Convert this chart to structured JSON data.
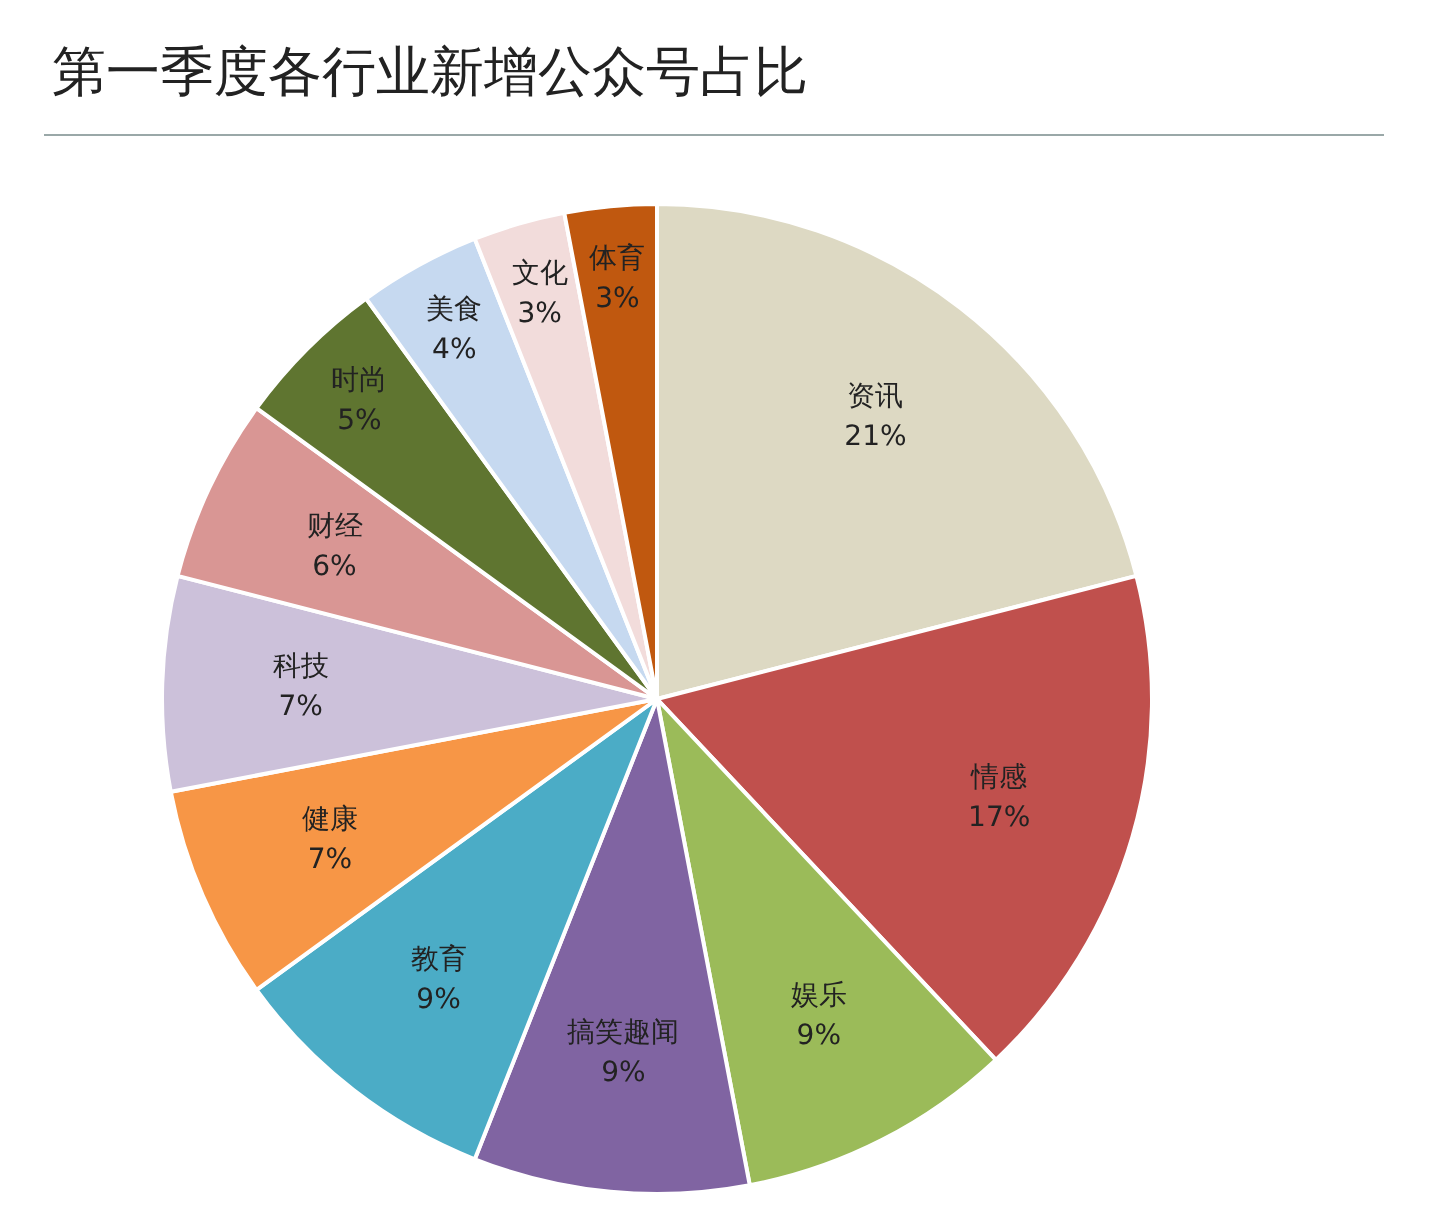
{
  "chart_data": {
    "type": "pie",
    "title": "第一季度各行业新增公众号占比",
    "categories": [
      "资讯",
      "情感",
      "娱乐",
      "搞笑趣闻",
      "教育",
      "健康",
      "科技",
      "财经",
      "时尚",
      "美食",
      "文化",
      "体育"
    ],
    "values": [
      21,
      17,
      9,
      9,
      9,
      7,
      7,
      6,
      5,
      4,
      3,
      3
    ],
    "value_labels": [
      "21%",
      "17%",
      "9%",
      "9%",
      "9%",
      "7%",
      "7%",
      "6%",
      "5%",
      "4%",
      "3%",
      "3%"
    ],
    "colors": [
      "#ddd9c3",
      "#c0504d",
      "#9bbb59",
      "#8064a2",
      "#4bacc6",
      "#f79646",
      "#ccc1da",
      "#d99694",
      "#5f7530",
      "#c6d9f0",
      "#f2dcdb",
      "#c0580f"
    ],
    "legend": false
  }
}
